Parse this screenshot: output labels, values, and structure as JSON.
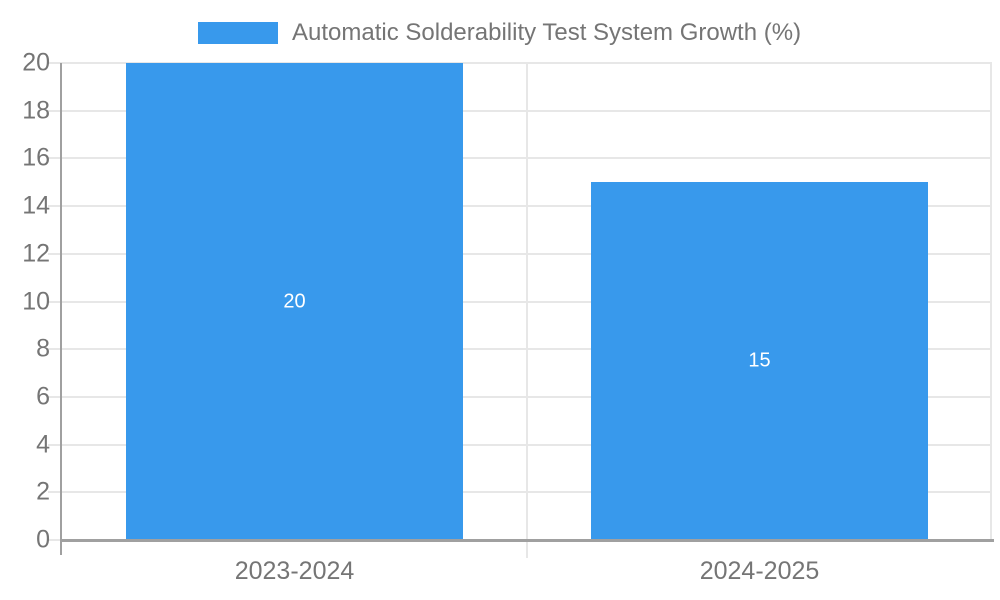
{
  "chart_data": {
    "type": "bar",
    "title": "Automatic Solderability Test System Growth (%)",
    "categories": [
      "2023-2024",
      "2024-2025"
    ],
    "values": [
      20,
      15
    ],
    "value_labels": [
      "20",
      "15"
    ],
    "xlabel": "",
    "ylabel": "",
    "ylim": [
      0,
      20
    ],
    "yticks": [
      0,
      2,
      4,
      6,
      8,
      10,
      12,
      14,
      16,
      18,
      20
    ],
    "grid": true,
    "legend_position": "top-center",
    "colors": {
      "bar": "#3899ec",
      "grid": "#e7e7e7",
      "axis": "#a0a0a0",
      "tick_text": "#757575",
      "value_text": "#ffffff",
      "background": "#ffffff"
    }
  }
}
